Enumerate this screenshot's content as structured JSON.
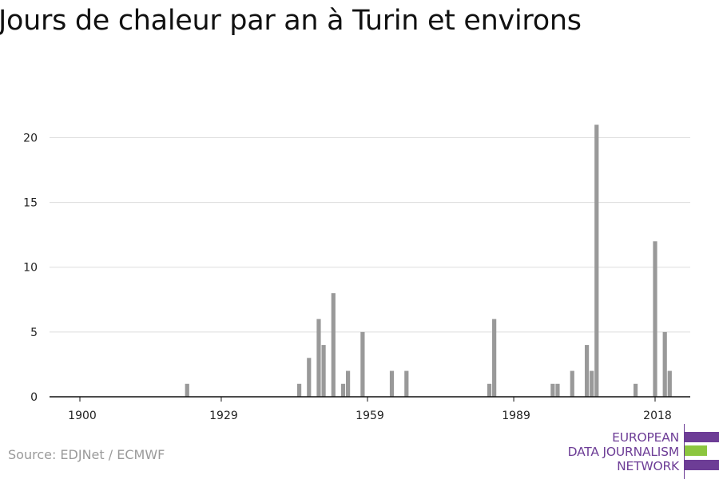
{
  "title": "Jours de chaleur par an à Turin et environs",
  "source": "Source: EDJNet / ECMWF",
  "logo": {
    "lines": [
      "EUROPEAN",
      "DATA JOURNALISM",
      "NETWORK"
    ],
    "colors": {
      "purple": "#6d3d96",
      "green": "#8cc63f"
    }
  },
  "chart_data": {
    "type": "bar",
    "title": "Jours de chaleur par an à Turin et environs",
    "xlabel": "",
    "ylabel": "",
    "xlim": [
      1900,
      2018
    ],
    "ylim": [
      0,
      22
    ],
    "x_ticks": [
      1900,
      1929,
      1959,
      1989,
      2018
    ],
    "y_ticks": [
      0,
      5,
      10,
      15,
      20
    ],
    "grid": true,
    "bar_color": "#999999",
    "x": [
      1922,
      1945,
      1947,
      1949,
      1950,
      1952,
      1954,
      1955,
      1958,
      1964,
      1967,
      1984,
      1985,
      1997,
      1998,
      2001,
      2004,
      2005,
      2006,
      2014,
      2018,
      2020,
      2021
    ],
    "values": [
      1,
      1,
      3,
      6,
      4,
      8,
      1,
      2,
      5,
      2,
      2,
      1,
      6,
      1,
      1,
      2,
      4,
      2,
      21,
      1,
      12,
      5,
      2
    ]
  }
}
